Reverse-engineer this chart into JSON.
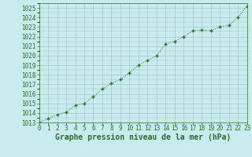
{
  "x": [
    0,
    1,
    2,
    3,
    4,
    5,
    6,
    7,
    8,
    9,
    10,
    11,
    12,
    13,
    14,
    15,
    16,
    17,
    18,
    19,
    20,
    21,
    22,
    23
  ],
  "y": [
    1013.0,
    1013.4,
    1013.8,
    1014.1,
    1014.8,
    1015.0,
    1015.7,
    1016.5,
    1017.1,
    1017.5,
    1018.2,
    1019.0,
    1019.5,
    1020.0,
    1021.2,
    1021.5,
    1022.0,
    1022.6,
    1022.7,
    1022.6,
    1023.0,
    1023.2,
    1024.0,
    1025.2
  ],
  "line_color": "#2d6a2d",
  "marker": "+",
  "bg_color": "#c8eced",
  "grid_color": "#a0bfbf",
  "xlabel": "Graphe pression niveau de la mer (hPa)",
  "xlabel_fontsize": 7,
  "ylabel_ticks": [
    1013,
    1014,
    1015,
    1016,
    1017,
    1018,
    1019,
    1020,
    1021,
    1022,
    1023,
    1024,
    1025
  ],
  "xlim": [
    0,
    23
  ],
  "ylim": [
    1013.0,
    1025.5
  ],
  "tick_fontsize": 5.5
}
